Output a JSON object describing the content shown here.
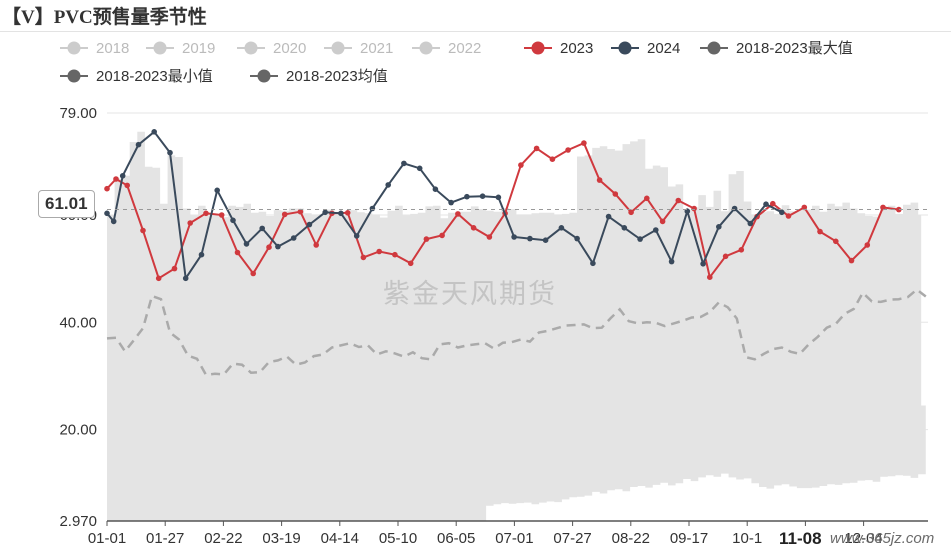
{
  "title": "【V】PVC预售量季节性",
  "tooltip_value": "61.01",
  "watermark": "紫金天风期货",
  "site_watermark": "www.365jz.com",
  "xaxis_highlight": "11-08",
  "colors": {
    "inactive": "#cccccc",
    "s2023": "#d0393e",
    "s2024": "#3a4a5c",
    "max": "#666666",
    "min": "#666666",
    "avg": "#aaaaaa",
    "band": "#e4e4e4",
    "grid": "#e6e6e6"
  },
  "chart_data": {
    "type": "line",
    "title": "【V】PVC预售量季节性",
    "ylim": [
      2.97,
      79.0
    ],
    "yticks": [
      {
        "value": 79.0,
        "label": "79.00"
      },
      {
        "value": 60.0,
        "label": "60.00"
      },
      {
        "value": 40.0,
        "label": "40.00"
      },
      {
        "value": 20.0,
        "label": "20.00"
      },
      {
        "value": 2.97,
        "label": "2.970"
      }
    ],
    "xticks": [
      "01-01",
      "01-27",
      "02-22",
      "03-19",
      "04-14",
      "05-10",
      "06-05",
      "07-01",
      "07-27",
      "08-22",
      "09-17",
      "10-1",
      "11-08",
      "12-04"
    ],
    "legend": [
      {
        "name": "2018",
        "color": "#cccccc",
        "active": false
      },
      {
        "name": "2019",
        "color": "#cccccc",
        "active": false
      },
      {
        "name": "2020",
        "color": "#cccccc",
        "active": false
      },
      {
        "name": "2021",
        "color": "#cccccc",
        "active": false
      },
      {
        "name": "2022",
        "color": "#cccccc",
        "active": false
      },
      {
        "name": "2023",
        "color": "#d0393e",
        "active": true
      },
      {
        "name": "2024",
        "color": "#3a4a5c",
        "active": true
      },
      {
        "name": "2018-2023最大值",
        "color": "#666666",
        "active": true
      },
      {
        "name": "2018-2023最小值",
        "color": "#666666",
        "active": true
      },
      {
        "name": "2018-2023均值",
        "color": "#666666",
        "active": true
      }
    ],
    "band_max": [
      60.0,
      66.8,
      67.3,
      73.6,
      75.5,
      69.0,
      68.8,
      62.1,
      71.1,
      70.8,
      61.2,
      59.9,
      61.7,
      59.9,
      60.1,
      59.6,
      61.7,
      61.5,
      62.1,
      60.4,
      60.6,
      59.8,
      60.9,
      60.8,
      61.2,
      61.2,
      60.3,
      60.1,
      60.2,
      61.0,
      60.2,
      60.0,
      60.9,
      60.5,
      60.3,
      60.1,
      59.5,
      60.8,
      61.7,
      59.9,
      60.2,
      60.4,
      61.6,
      61.7,
      59.4,
      60.4,
      60.6,
      60.6,
      61.6,
      61.1,
      60.8,
      60.6,
      61.3,
      61.1,
      60.1,
      60.1,
      60.3,
      60.4,
      60.4,
      60.1,
      60.2,
      60.4,
      70.9,
      71.1,
      72.5,
      72.8,
      72.3,
      72.0,
      73.2,
      73.7,
      74.1,
      68.6,
      69.2,
      68.9,
      65.3,
      65.7,
      60.9,
      61.4,
      63.7,
      61.5,
      64.5,
      60.7,
      67.6,
      68.2,
      62.5,
      60.1,
      60.5,
      60.7,
      60.2,
      61.8,
      60.7,
      61.0,
      61.0,
      61.7,
      60.6,
      62.1,
      61.6,
      62.3,
      61.2,
      60.3,
      59.8,
      59.7,
      61.4,
      61.7,
      60.2,
      61.9,
      62.3,
      60.0
    ],
    "band_min": [
      2.97,
      2.97,
      2.97,
      2.97,
      2.97,
      2.97,
      2.97,
      2.97,
      2.97,
      2.97,
      2.97,
      2.97,
      2.97,
      2.97,
      2.97,
      2.97,
      2.97,
      2.97,
      2.97,
      2.97,
      2.97,
      2.97,
      2.97,
      2.97,
      2.97,
      2.97,
      2.97,
      2.97,
      2.97,
      2.97,
      2.97,
      2.97,
      2.97,
      2.97,
      2.97,
      2.97,
      2.97,
      2.97,
      2.97,
      2.97,
      2.97,
      2.97,
      2.97,
      2.97,
      2.97,
      2.97,
      2.97,
      2.97,
      2.97,
      2.97,
      5.8,
      6.1,
      6.3,
      6.2,
      6.3,
      6.4,
      6.1,
      6.4,
      6.6,
      6.5,
      7.0,
      7.4,
      7.5,
      7.7,
      8.4,
      8.1,
      8.7,
      8.9,
      8.5,
      9.3,
      9.5,
      9.2,
      9.7,
      10.1,
      9.6,
      10.0,
      10.8,
      10.4,
      11.1,
      11.5,
      11.2,
      11.8,
      11.1,
      10.7,
      10.9,
      10.0,
      9.3,
      9.0,
      9.6,
      9.8,
      9.4,
      9.1,
      9.1,
      9.2,
      9.5,
      9.8,
      9.7,
      10.0,
      10.1,
      10.5,
      10.6,
      10.3,
      11.2,
      11.3,
      11.5,
      11.4,
      11.0,
      11.7
    ],
    "band_x_start": "01-01",
    "band_x_end": "12-31",
    "band_tail": {
      "upper_drop": 24.5,
      "lower": 16.0
    },
    "avg": [
      37.0,
      37.1,
      34.6,
      36.7,
      38.9,
      44.9,
      44.3,
      38.1,
      36.8,
      33.8,
      33.2,
      30.2,
      30.4,
      30.3,
      32.3,
      32.1,
      30.6,
      30.7,
      32.6,
      32.9,
      33.6,
      32.1,
      32.5,
      33.7,
      34.0,
      35.3,
      35.7,
      36.1,
      35.4,
      35.7,
      34.0,
      34.6,
      34.2,
      33.6,
      34.4,
      33.3,
      33.1,
      35.9,
      36.1,
      35.3,
      35.7,
      35.9,
      36.1,
      35.1,
      36.2,
      36.3,
      36.8,
      36.4,
      38.1,
      38.4,
      38.9,
      39.4,
      39.5,
      39.6,
      38.9,
      39.0,
      40.8,
      42.4,
      40.2,
      39.8,
      40.0,
      39.9,
      39.3,
      39.8,
      40.3,
      40.9,
      41.0,
      41.9,
      43.7,
      42.8,
      40.7,
      33.5,
      33.1,
      34.1,
      35.0,
      35.3,
      34.5,
      34.1,
      35.9,
      37.3,
      39.0,
      39.7,
      41.6,
      42.5,
      45.5,
      43.9,
      43.8,
      44.2,
      44.3,
      44.7,
      46.1,
      44.8
    ],
    "series": [
      {
        "name": "2023",
        "color": "#d0393e",
        "points": [
          [
            "01-01",
            64.9
          ],
          [
            "01-05",
            66.7
          ],
          [
            "01-10",
            65.5
          ],
          [
            "01-17",
            57.1
          ],
          [
            "01-24",
            48.2
          ],
          [
            "01-31",
            50.0
          ],
          [
            "02-07",
            58.5
          ],
          [
            "02-14",
            60.3
          ],
          [
            "02-21",
            60.0
          ],
          [
            "02-28",
            53.0
          ],
          [
            "03-07",
            49.1
          ],
          [
            "03-14",
            54.0
          ],
          [
            "03-21",
            60.1
          ],
          [
            "03-28",
            60.6
          ],
          [
            "04-04",
            54.4
          ],
          [
            "04-11",
            60.3
          ],
          [
            "04-18",
            60.4
          ],
          [
            "04-25",
            52.1
          ],
          [
            "05-02",
            53.2
          ],
          [
            "05-09",
            52.6
          ],
          [
            "05-16",
            51.0
          ],
          [
            "05-23",
            55.5
          ],
          [
            "05-30",
            56.2
          ],
          [
            "06-06",
            60.2
          ],
          [
            "06-13",
            57.6
          ],
          [
            "06-20",
            55.9
          ],
          [
            "06-27",
            60.3
          ],
          [
            "07-04",
            69.3
          ],
          [
            "07-11",
            72.4
          ],
          [
            "07-18",
            70.4
          ],
          [
            "07-25",
            72.1
          ],
          [
            "08-01",
            73.4
          ],
          [
            "08-08",
            66.5
          ],
          [
            "08-15",
            63.9
          ],
          [
            "08-22",
            60.5
          ],
          [
            "08-29",
            63.1
          ],
          [
            "09-05",
            58.8
          ],
          [
            "09-12",
            62.7
          ],
          [
            "09-19",
            61.2
          ],
          [
            "09-26",
            48.4
          ],
          [
            "10-03",
            52.3
          ],
          [
            "10-10",
            53.5
          ],
          [
            "10-17",
            59.7
          ],
          [
            "10-24",
            62.1
          ],
          [
            "10-31",
            59.8
          ],
          [
            "11-07",
            61.4
          ],
          [
            "11-14",
            56.9
          ],
          [
            "11-21",
            55.1
          ],
          [
            "11-28",
            51.5
          ],
          [
            "12-05",
            54.4
          ],
          [
            "12-12",
            61.4
          ],
          [
            "12-19",
            61.0
          ]
        ]
      },
      {
        "name": "2024",
        "color": "#3a4a5c",
        "points": [
          [
            "01-01",
            60.3
          ],
          [
            "01-04",
            58.8
          ],
          [
            "01-08",
            67.3
          ],
          [
            "01-15",
            73.1
          ],
          [
            "01-22",
            75.5
          ],
          [
            "01-29",
            71.6
          ],
          [
            "02-05",
            48.2
          ],
          [
            "02-12",
            52.6
          ],
          [
            "02-19",
            64.6
          ],
          [
            "02-26",
            59.0
          ],
          [
            "03-04",
            54.6
          ],
          [
            "03-11",
            57.5
          ],
          [
            "03-18",
            54.1
          ],
          [
            "03-25",
            55.7
          ],
          [
            "04-01",
            58.2
          ],
          [
            "04-08",
            60.5
          ],
          [
            "04-15",
            60.3
          ],
          [
            "04-22",
            56.1
          ],
          [
            "04-29",
            61.2
          ],
          [
            "05-06",
            65.6
          ],
          [
            "05-13",
            69.6
          ],
          [
            "05-20",
            68.7
          ],
          [
            "05-27",
            64.8
          ],
          [
            "06-03",
            62.3
          ],
          [
            "06-10",
            63.4
          ],
          [
            "06-17",
            63.5
          ],
          [
            "06-24",
            63.3
          ],
          [
            "07-01",
            55.9
          ],
          [
            "07-08",
            55.6
          ],
          [
            "07-15",
            55.3
          ],
          [
            "07-22",
            57.6
          ],
          [
            "07-29",
            55.6
          ],
          [
            "08-05",
            51.0
          ],
          [
            "08-12",
            59.7
          ],
          [
            "08-19",
            57.6
          ],
          [
            "08-26",
            55.5
          ],
          [
            "09-02",
            57.2
          ],
          [
            "09-09",
            51.3
          ],
          [
            "09-16",
            60.7
          ],
          [
            "09-23",
            50.9
          ],
          [
            "09-30",
            57.8
          ],
          [
            "10-07",
            61.2
          ],
          [
            "10-14",
            58.4
          ],
          [
            "10-21",
            62.0
          ],
          [
            "10-28",
            60.5
          ]
        ]
      }
    ]
  }
}
